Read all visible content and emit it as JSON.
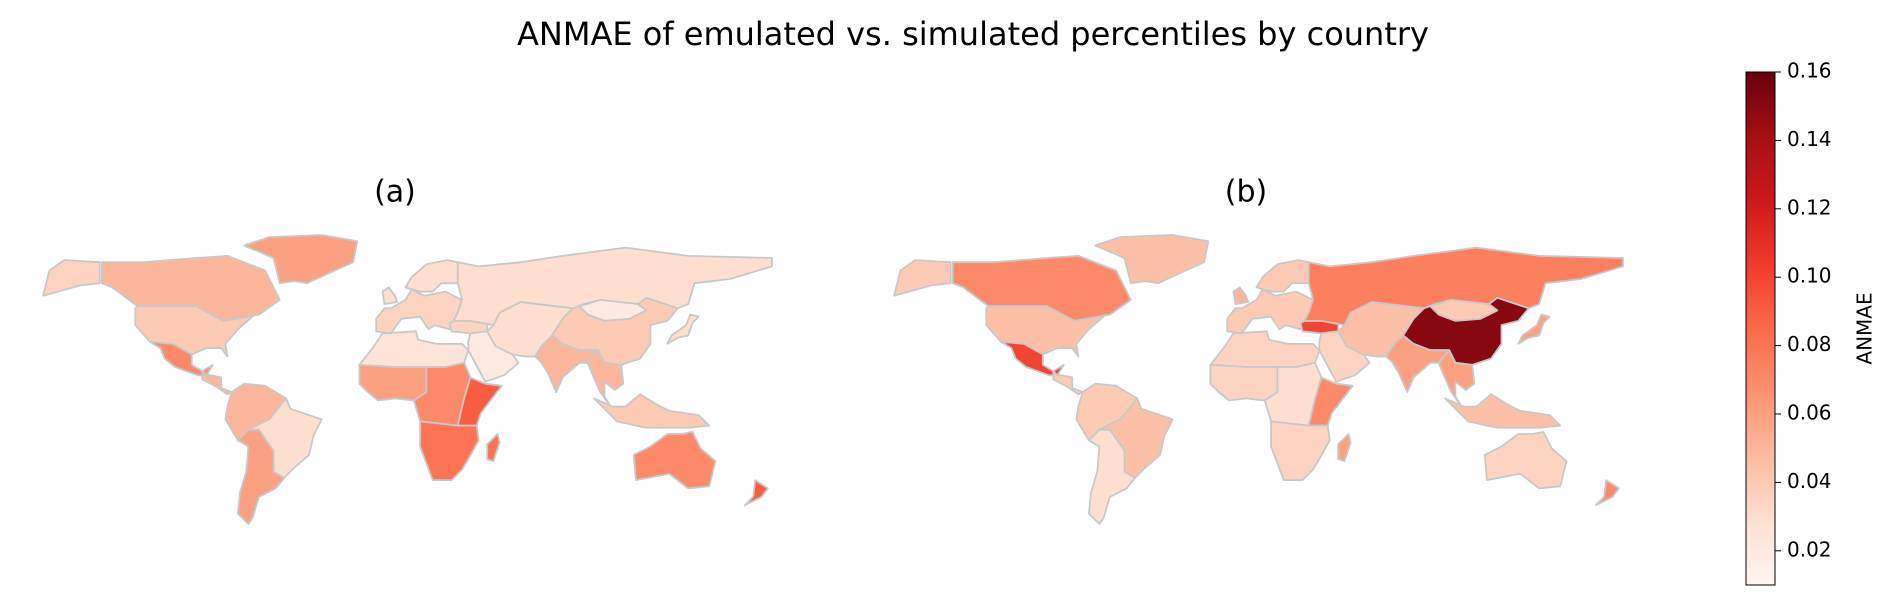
{
  "chart_data": {
    "type": "choropleth",
    "title": "ANMAE of emulated vs. simulated percentiles by country",
    "colorbar_label": "ANMAE",
    "colormap": "Reds",
    "border_color": "#c8c8c8",
    "clim": [
      0.01,
      0.16
    ],
    "cticks": [
      0.02,
      0.04,
      0.06,
      0.08,
      {
        "value": 0.1,
        "label": "0.10"
      },
      0.12,
      0.14,
      0.16
    ],
    "panels": [
      {
        "label": "(a)",
        "values": [
          0.05,
          0.035,
          0.04,
          0.06,
          0.07,
          0.05,
          0.05,
          0.03,
          0.06,
          0.025,
          0.06,
          0.07,
          0.09,
          0.08,
          0.08,
          0.035,
          0.03,
          0.03,
          0.035,
          0.02,
          0.03,
          0.03,
          0.02,
          0.04,
          0.05,
          0.05,
          0.04,
          0.03,
          0.07,
          0.09
        ]
      },
      {
        "label": "(b)",
        "values": [
          0.07,
          0.04,
          0.045,
          0.045,
          0.1,
          0.04,
          0.04,
          0.045,
          0.03,
          0.035,
          0.035,
          0.03,
          0.07,
          0.035,
          0.06,
          0.04,
          0.05,
          0.04,
          0.1,
          0.035,
          0.045,
          0.075,
          0.04,
          0.15,
          0.06,
          0.06,
          0.045,
          0.06,
          0.035,
          0.07
        ]
      }
    ]
  }
}
